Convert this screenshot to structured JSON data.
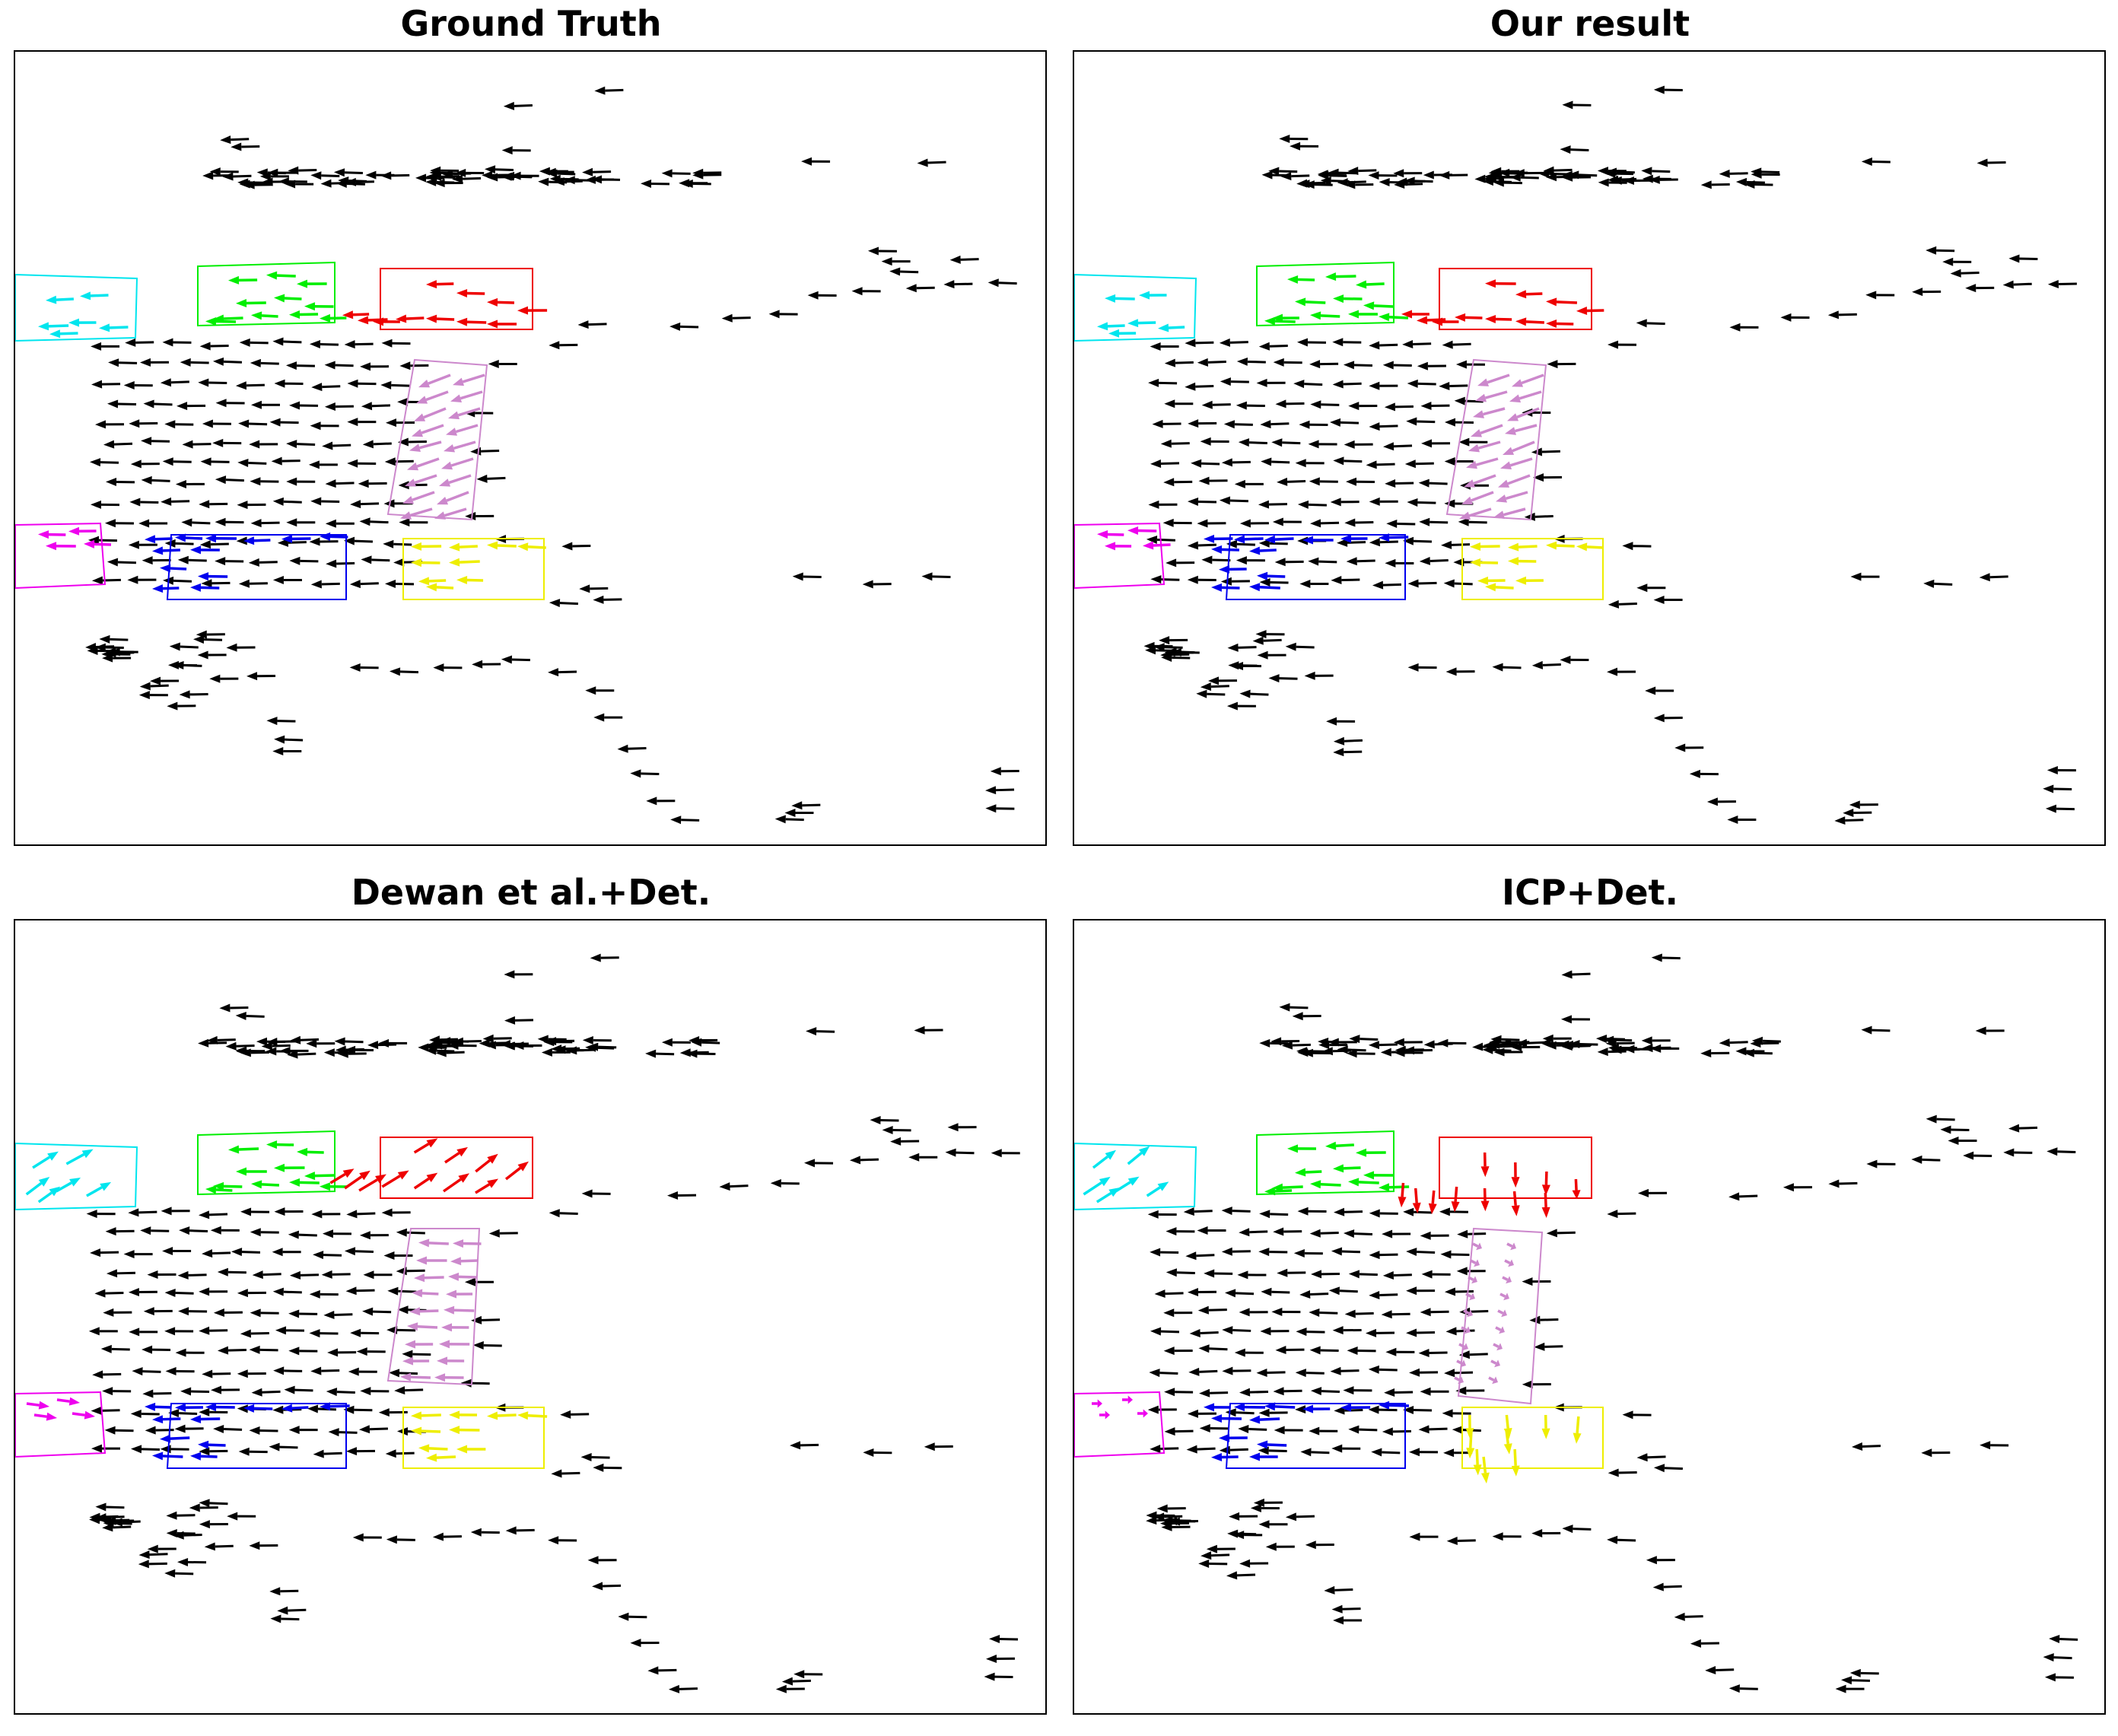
{
  "figure": {
    "panels": [
      {
        "id": "gt",
        "title": "Ground Truth"
      },
      {
        "id": "ours",
        "title": "Our result"
      },
      {
        "id": "dewan",
        "title": "Dewan et al.+Det."
      },
      {
        "id": "icp",
        "title": "ICP+Det."
      }
    ]
  },
  "colors": {
    "background_flow": "#000000",
    "cyan_object": "#00e5ee",
    "green_object": "#00ee00",
    "red_object": "#ee0000",
    "plum_object": "#cc88cc",
    "magenta_object": "#ee00ee",
    "blue_object": "#0000ee",
    "yellow_object": "#eeee00"
  },
  "objects": [
    "cyan",
    "green",
    "red",
    "plum",
    "magenta",
    "blue",
    "yellow"
  ],
  "flow_variants": {
    "gt": {
      "red": "left",
      "plum": "left-diag",
      "cyan": "left",
      "magenta": "left",
      "yellow": "left",
      "green": "left",
      "blue": "left"
    },
    "ours": {
      "red": "left",
      "plum": "left-diag",
      "cyan": "left",
      "magenta": "left",
      "yellow": "left",
      "green": "left",
      "blue": "left"
    },
    "dewan": {
      "red": "right-up",
      "plum": "left",
      "cyan": "right-up",
      "magenta": "right",
      "yellow": "left",
      "green": "left",
      "blue": "left"
    },
    "icp": {
      "red": "down",
      "plum": "short-diag",
      "cyan": "right-up",
      "magenta": "short",
      "yellow": "down-scatter",
      "green": "left",
      "blue": "left"
    }
  }
}
